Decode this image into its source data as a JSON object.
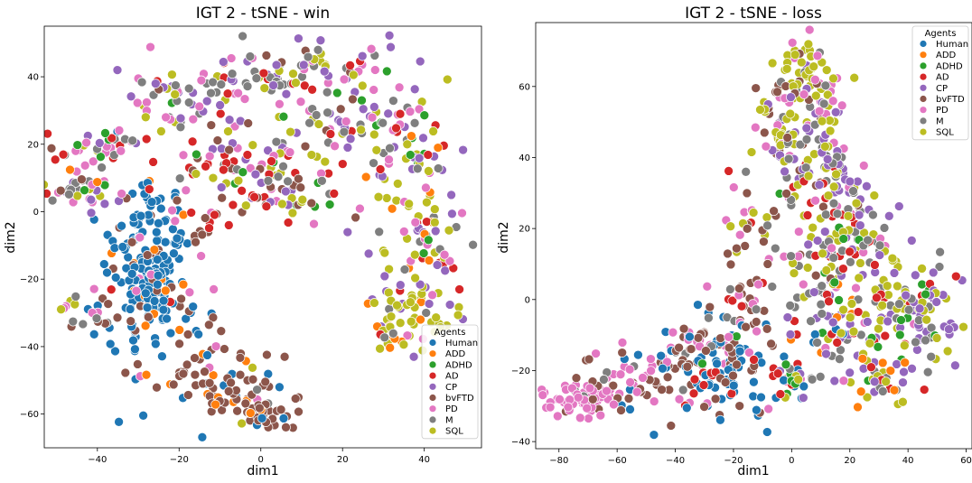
{
  "agent_colors": {
    "Human": "#1f77b4",
    "ADD": "#ff7f0e",
    "ADHD": "#2ca02c",
    "AD": "#d62728",
    "CP": "#9467bd",
    "bvFTD": "#8c564b",
    "PD": "#e377c2",
    "M": "#7f7f7f",
    "SQL": "#bcbd22"
  },
  "chart_data": [
    {
      "type": "scatter",
      "title": "IGT 2 - tSNE - win",
      "xlabel": "dim1",
      "ylabel": "dim2",
      "xlim": [
        -53,
        54
      ],
      "ylim": [
        -70,
        55
      ],
      "xticks": [
        -40,
        -20,
        0,
        20,
        40
      ],
      "yticks": [
        -60,
        -40,
        -20,
        0,
        20,
        40
      ],
      "legend": {
        "title": "Agents",
        "placement": "lower-right",
        "entries": [
          "Human",
          "ADD",
          "ADHD",
          "AD",
          "CP",
          "bvFTD",
          "PD",
          "M",
          "SQL"
        ]
      },
      "clusters": [
        {
          "cx": -27,
          "cy": -12,
          "sx": 5,
          "sy": 12,
          "n": 150,
          "mix": {
            "Human": 0.82,
            "bvFTD": 0.1,
            "PD": 0.04,
            "ADD": 0.04
          }
        },
        {
          "cx": -26,
          "cy": -30,
          "sx": 6,
          "sy": 7,
          "n": 70,
          "mix": {
            "Human": 0.65,
            "bvFTD": 0.2,
            "AD": 0.05,
            "PD": 0.05,
            "ADD": 0.05
          }
        },
        {
          "cx": -13,
          "cy": -48,
          "sx": 8,
          "sy": 6,
          "n": 60,
          "mix": {
            "bvFTD": 0.7,
            "Human": 0.1,
            "ADD": 0.1,
            "PD": 0.05,
            "SQL": 0.05
          }
        },
        {
          "cx": -6,
          "cy": -56,
          "sx": 6,
          "sy": 3,
          "n": 30,
          "mix": {
            "bvFTD": 0.75,
            "ADD": 0.1,
            "Human": 0.1,
            "M": 0.05
          }
        },
        {
          "cx": 3,
          "cy": -61,
          "sx": 4,
          "sy": 2,
          "n": 25,
          "mix": {
            "bvFTD": 0.75,
            "ADD": 0.15,
            "Human": 0.1
          }
        },
        {
          "cx": -15,
          "cy": -5,
          "sx": 3,
          "sy": 4,
          "n": 14,
          "mix": {
            "bvFTD": 0.6,
            "AD": 0.2,
            "PD": 0.2
          }
        },
        {
          "cx": -44,
          "cy": 8,
          "sx": 5,
          "sy": 5,
          "n": 45,
          "mix": {
            "PD": 0.3,
            "M": 0.2,
            "CP": 0.15,
            "AD": 0.1,
            "ADHD": 0.1,
            "SQL": 0.05,
            "ADD": 0.05,
            "bvFTD": 0.05
          }
        },
        {
          "cx": -38,
          "cy": 20,
          "sx": 5,
          "sy": 3,
          "n": 25,
          "mix": {
            "PD": 0.3,
            "M": 0.2,
            "AD": 0.2,
            "ADHD": 0.1,
            "CP": 0.1,
            "SQL": 0.1
          }
        },
        {
          "cx": -20,
          "cy": 32,
          "sx": 8,
          "sy": 6,
          "n": 55,
          "mix": {
            "M": 0.25,
            "PD": 0.2,
            "CP": 0.2,
            "SQL": 0.15,
            "AD": 0.1,
            "ADHD": 0.05,
            "bvFTD": 0.05
          }
        },
        {
          "cx": 0,
          "cy": 40,
          "sx": 7,
          "sy": 4,
          "n": 50,
          "mix": {
            "M": 0.3,
            "PD": 0.2,
            "CP": 0.2,
            "SQL": 0.15,
            "AD": 0.1,
            "bvFTD": 0.05
          }
        },
        {
          "cx": -15,
          "cy": 14,
          "sx": 6,
          "sy": 4,
          "n": 30,
          "mix": {
            "AD": 0.25,
            "ADHD": 0.15,
            "M": 0.15,
            "PD": 0.15,
            "SQL": 0.1,
            "CP": 0.1,
            "bvFTD": 0.1
          }
        },
        {
          "cx": 0,
          "cy": 15,
          "sx": 6,
          "sy": 6,
          "n": 40,
          "mix": {
            "AD": 0.2,
            "M": 0.15,
            "PD": 0.15,
            "SQL": 0.15,
            "CP": 0.1,
            "ADHD": 0.1,
            "bvFTD": 0.1,
            "ADD": 0.05
          }
        },
        {
          "cx": 5,
          "cy": 3,
          "sx": 8,
          "sy": 3,
          "n": 40,
          "mix": {
            "bvFTD": 0.25,
            "AD": 0.2,
            "ADHD": 0.1,
            "PD": 0.1,
            "SQL": 0.15,
            "M": 0.1,
            "CP": 0.1
          }
        },
        {
          "cx": 20,
          "cy": 30,
          "sx": 8,
          "sy": 10,
          "n": 80,
          "mix": {
            "PD": 0.22,
            "M": 0.2,
            "CP": 0.18,
            "SQL": 0.15,
            "AD": 0.1,
            "ADHD": 0.08,
            "bvFTD": 0.07
          }
        },
        {
          "cx": 38,
          "cy": 20,
          "sx": 5,
          "sy": 10,
          "n": 60,
          "mix": {
            "SQL": 0.25,
            "M": 0.2,
            "CP": 0.2,
            "PD": 0.15,
            "AD": 0.1,
            "ADHD": 0.05,
            "ADD": 0.05
          }
        },
        {
          "cx": 40,
          "cy": -8,
          "sx": 6,
          "sy": 8,
          "n": 60,
          "mix": {
            "SQL": 0.3,
            "CP": 0.2,
            "M": 0.2,
            "AD": 0.1,
            "PD": 0.1,
            "ADD": 0.05,
            "ADHD": 0.05
          }
        },
        {
          "cx": 37,
          "cy": -27,
          "sx": 6,
          "sy": 6,
          "n": 50,
          "mix": {
            "SQL": 0.55,
            "CP": 0.15,
            "ADD": 0.1,
            "M": 0.1,
            "PD": 0.1
          }
        },
        {
          "cx": 32,
          "cy": -38,
          "sx": 3,
          "sy": 3,
          "n": 15,
          "mix": {
            "SQL": 0.5,
            "ADD": 0.3,
            "AD": 0.1,
            "M": 0.1
          }
        },
        {
          "cx": -46,
          "cy": -30,
          "sx": 2,
          "sy": 3,
          "n": 10,
          "mix": {
            "SQL": 0.3,
            "PD": 0.3,
            "bvFTD": 0.2,
            "M": 0.2
          }
        },
        {
          "cx": -40,
          "cy": -33,
          "sx": 2,
          "sy": 3,
          "n": 6,
          "mix": {
            "M": 0.3,
            "PD": 0.3,
            "bvFTD": 0.2,
            "AD": 0.2
          }
        },
        {
          "cx": 12,
          "cy": 45,
          "sx": 4,
          "sy": 3,
          "n": 20,
          "mix": {
            "PD": 0.3,
            "M": 0.2,
            "SQL": 0.3,
            "CP": 0.2
          }
        }
      ]
    },
    {
      "type": "scatter",
      "title": "IGT 2 - tSNE - loss",
      "xlabel": "dim1",
      "ylabel": "dim2",
      "xlim": [
        -88,
        62
      ],
      "ylim": [
        -42,
        78
      ],
      "xticks": [
        -80,
        -60,
        -40,
        -20,
        0,
        20,
        40,
        60
      ],
      "yticks": [
        -40,
        -20,
        0,
        20,
        40,
        60
      ],
      "legend": {
        "title": "Agents",
        "placement": "upper-right",
        "entries": [
          "Human",
          "ADD",
          "ADHD",
          "AD",
          "CP",
          "bvFTD",
          "PD",
          "M",
          "SQL"
        ]
      },
      "clusters": [
        {
          "cx": -72,
          "cy": -28,
          "sx": 6,
          "sy": 3,
          "n": 70,
          "mix": {
            "PD": 0.85,
            "bvFTD": 0.1,
            "M": 0.05
          }
        },
        {
          "cx": -52,
          "cy": -22,
          "sx": 8,
          "sy": 5,
          "n": 60,
          "mix": {
            "PD": 0.45,
            "bvFTD": 0.35,
            "Human": 0.1,
            "M": 0.1
          }
        },
        {
          "cx": -35,
          "cy": -12,
          "sx": 5,
          "sy": 4,
          "n": 30,
          "mix": {
            "PD": 0.7,
            "bvFTD": 0.2,
            "Human": 0.1
          }
        },
        {
          "cx": -25,
          "cy": -20,
          "sx": 8,
          "sy": 6,
          "n": 90,
          "mix": {
            "Human": 0.55,
            "bvFTD": 0.25,
            "ADHD": 0.05,
            "AD": 0.05,
            "M": 0.05,
            "PD": 0.05
          }
        },
        {
          "cx": -15,
          "cy": -4,
          "sx": 6,
          "sy": 6,
          "n": 35,
          "mix": {
            "bvFTD": 0.45,
            "PD": 0.2,
            "Human": 0.15,
            "M": 0.1,
            "AD": 0.1
          }
        },
        {
          "cx": -13,
          "cy": 16,
          "sx": 6,
          "sy": 8,
          "n": 30,
          "mix": {
            "PD": 0.3,
            "SQL": 0.25,
            "bvFTD": 0.2,
            "M": 0.15,
            "AD": 0.1
          }
        },
        {
          "cx": 0,
          "cy": -22,
          "sx": 5,
          "sy": 4,
          "n": 35,
          "mix": {
            "AD": 0.25,
            "Human": 0.2,
            "ADHD": 0.15,
            "SQL": 0.1,
            "M": 0.1,
            "PD": 0.1,
            "CP": 0.1
          }
        },
        {
          "cx": -5,
          "cy": 50,
          "sx": 4,
          "sy": 5,
          "n": 40,
          "mix": {
            "SQL": 0.4,
            "bvFTD": 0.2,
            "M": 0.15,
            "PD": 0.15,
            "CP": 0.1
          }
        },
        {
          "cx": 3,
          "cy": 64,
          "sx": 5,
          "sy": 5,
          "n": 45,
          "mix": {
            "SQL": 0.45,
            "bvFTD": 0.2,
            "PD": 0.15,
            "M": 0.1,
            "CP": 0.1
          }
        },
        {
          "cx": 12,
          "cy": 58,
          "sx": 5,
          "sy": 3,
          "n": 25,
          "mix": {
            "SQL": 0.5,
            "PD": 0.2,
            "bvFTD": 0.15,
            "CP": 0.15
          }
        },
        {
          "cx": 2,
          "cy": 36,
          "sx": 6,
          "sy": 6,
          "n": 45,
          "mix": {
            "SQL": 0.3,
            "CP": 0.2,
            "M": 0.15,
            "bvFTD": 0.15,
            "AD": 0.1,
            "PD": 0.1
          }
        },
        {
          "cx": 15,
          "cy": 35,
          "sx": 6,
          "sy": 6,
          "n": 45,
          "mix": {
            "CP": 0.3,
            "SQL": 0.25,
            "M": 0.2,
            "AD": 0.1,
            "PD": 0.1,
            "ADHD": 0.05
          }
        },
        {
          "cx": 10,
          "cy": 15,
          "sx": 7,
          "sy": 8,
          "n": 60,
          "mix": {
            "SQL": 0.25,
            "CP": 0.2,
            "M": 0.2,
            "AD": 0.1,
            "ADHD": 0.1,
            "PD": 0.1,
            "bvFTD": 0.05
          }
        },
        {
          "cx": 25,
          "cy": 20,
          "sx": 6,
          "sy": 6,
          "n": 45,
          "mix": {
            "M": 0.25,
            "SQL": 0.25,
            "CP": 0.25,
            "AD": 0.1,
            "PD": 0.1,
            "ADHD": 0.05
          }
        },
        {
          "cx": 15,
          "cy": -8,
          "sx": 10,
          "sy": 8,
          "n": 80,
          "mix": {
            "SQL": 0.25,
            "M": 0.2,
            "CP": 0.2,
            "AD": 0.1,
            "ADHD": 0.1,
            "Human": 0.05,
            "PD": 0.05,
            "ADD": 0.05
          }
        },
        {
          "cx": 32,
          "cy": 2,
          "sx": 8,
          "sy": 8,
          "n": 60,
          "mix": {
            "SQL": 0.3,
            "CP": 0.25,
            "M": 0.2,
            "AD": 0.1,
            "ADHD": 0.1,
            "PD": 0.05
          }
        },
        {
          "cx": 47,
          "cy": -3,
          "sx": 6,
          "sy": 8,
          "n": 55,
          "mix": {
            "SQL": 0.3,
            "CP": 0.3,
            "M": 0.2,
            "AD": 0.1,
            "ADHD": 0.1
          }
        },
        {
          "cx": 30,
          "cy": -22,
          "sx": 6,
          "sy": 4,
          "n": 30,
          "mix": {
            "SQL": 0.4,
            "M": 0.2,
            "CP": 0.2,
            "ADD": 0.1,
            "AD": 0.1
          }
        },
        {
          "cx": -21,
          "cy": 35,
          "sx": 1,
          "sy": 1,
          "n": 1,
          "mix": {
            "AD": 1.0
          }
        },
        {
          "cx": 12,
          "cy": 48,
          "sx": 5,
          "sy": 6,
          "n": 20,
          "mix": {
            "SQL": 0.4,
            "M": 0.2,
            "CP": 0.2,
            "PD": 0.2
          }
        }
      ]
    }
  ]
}
